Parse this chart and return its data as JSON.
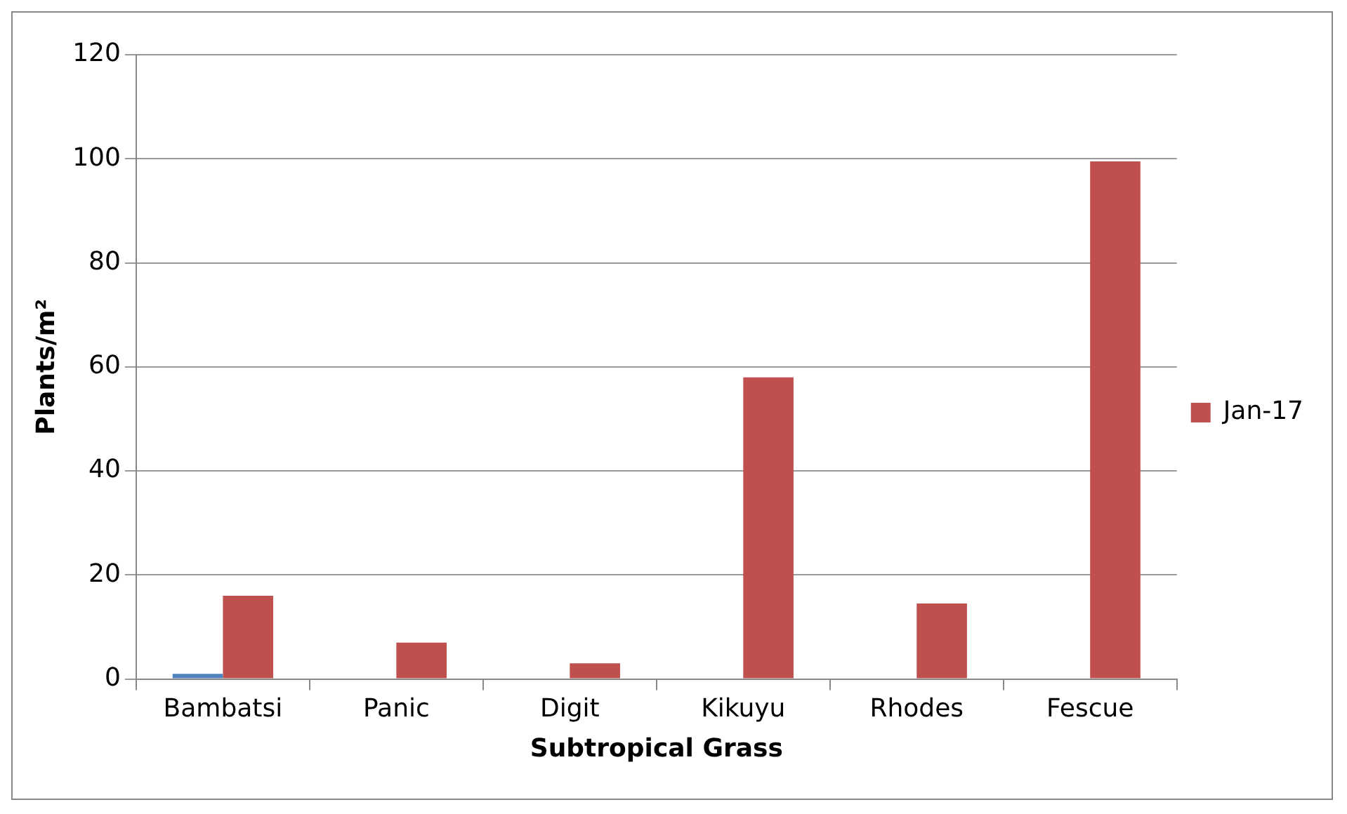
{
  "chart_data": {
    "type": "bar",
    "xlabel": "Subtropical Grass",
    "ylabel": "Plants/m²",
    "categories": [
      "Bambatsi",
      "Panic",
      "Digit",
      "Kikuyu",
      "Rhodes",
      "Fescue"
    ],
    "series": [
      {
        "color": "#4f81bd",
        "values": [
          1,
          null,
          null,
          null,
          null,
          null
        ]
      },
      {
        "name": "Jan-17",
        "color": "#c0504d",
        "values": [
          16,
          7,
          3,
          58,
          14.5,
          99.5
        ]
      }
    ],
    "ylim": [
      0,
      120
    ],
    "yticks": [
      0,
      20,
      40,
      60,
      80,
      100,
      120
    ],
    "grid": "y",
    "legend": "right"
  }
}
